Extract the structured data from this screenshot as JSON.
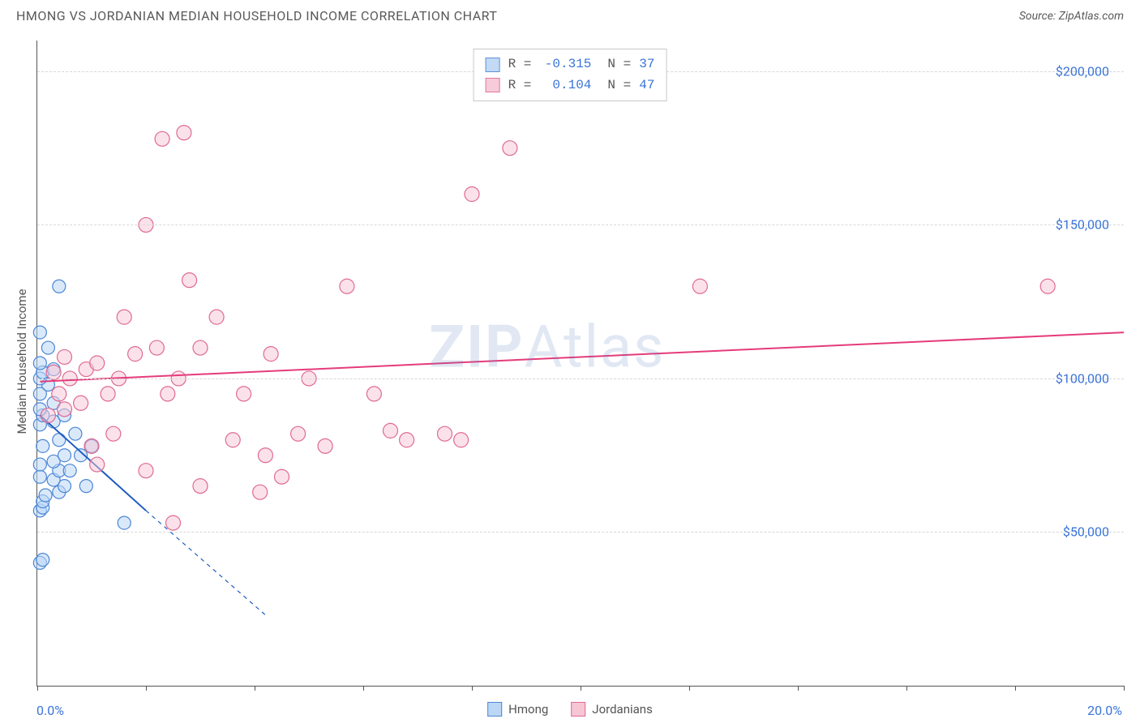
{
  "title": "HMONG VS JORDANIAN MEDIAN HOUSEHOLD INCOME CORRELATION CHART",
  "source_label": "Source: ZipAtlas.com",
  "watermark": {
    "bold": "ZIP",
    "rest": "Atlas"
  },
  "y_axis": {
    "title": "Median Household Income",
    "min": 0,
    "max": 210000,
    "ticks": [
      50000,
      100000,
      150000,
      200000
    ],
    "tick_labels": [
      "$50,000",
      "$100,000",
      "$150,000",
      "$200,000"
    ],
    "label_color": "#3a74d8",
    "grid_color": "#d8d8d8",
    "title_color": "#555555"
  },
  "x_axis": {
    "min": 0,
    "max": 20,
    "tick_positions": [
      0,
      2,
      4,
      6,
      8,
      10,
      12,
      14,
      16,
      18,
      20
    ],
    "min_label": "0.0%",
    "max_label": "20.0%",
    "label_color": "#3a74d8"
  },
  "series": [
    {
      "name": "Hmong",
      "R": "-0.315",
      "N": "37",
      "marker_fill": "#bcd7f5",
      "marker_stroke": "#4b86d6",
      "marker_fill_opacity": 0.55,
      "marker_radius": 8,
      "line_color": "#1e5bbf",
      "line_width": 2,
      "reg_start": {
        "x": 0.05,
        "y": 88000
      },
      "reg_solid_end": {
        "x": 2.0,
        "y": 57000
      },
      "reg_dash_end": {
        "x": 4.2,
        "y": 23000
      },
      "points": [
        [
          0.05,
          40000
        ],
        [
          0.1,
          41000
        ],
        [
          0.05,
          57000
        ],
        [
          0.1,
          58000
        ],
        [
          0.1,
          60000
        ],
        [
          0.15,
          62000
        ],
        [
          0.4,
          63000
        ],
        [
          0.5,
          65000
        ],
        [
          0.3,
          67000
        ],
        [
          0.05,
          68000
        ],
        [
          0.4,
          70000
        ],
        [
          0.6,
          70000
        ],
        [
          0.05,
          72000
        ],
        [
          0.3,
          73000
        ],
        [
          0.5,
          75000
        ],
        [
          0.8,
          75000
        ],
        [
          0.1,
          78000
        ],
        [
          0.4,
          80000
        ],
        [
          0.7,
          82000
        ],
        [
          0.05,
          85000
        ],
        [
          0.3,
          86000
        ],
        [
          0.1,
          88000
        ],
        [
          0.5,
          88000
        ],
        [
          0.05,
          90000
        ],
        [
          0.3,
          92000
        ],
        [
          0.05,
          95000
        ],
        [
          0.2,
          98000
        ],
        [
          0.05,
          100000
        ],
        [
          0.1,
          102000
        ],
        [
          0.3,
          103000
        ],
        [
          0.05,
          105000
        ],
        [
          0.2,
          110000
        ],
        [
          0.05,
          115000
        ],
        [
          0.4,
          130000
        ],
        [
          1.6,
          53000
        ],
        [
          1.0,
          78000
        ],
        [
          0.9,
          65000
        ]
      ]
    },
    {
      "name": "Jordanians",
      "R": "0.104",
      "N": "47",
      "marker_fill": "#f7c6d5",
      "marker_stroke": "#e06a91",
      "marker_fill_opacity": 0.5,
      "marker_radius": 9,
      "line_color": "#e53b7a",
      "line_width": 2,
      "reg_start": {
        "x": 0.05,
        "y": 99000
      },
      "reg_solid_end": {
        "x": 20.0,
        "y": 115000
      },
      "points": [
        [
          0.2,
          88000
        ],
        [
          0.5,
          90000
        ],
        [
          0.8,
          92000
        ],
        [
          0.4,
          95000
        ],
        [
          0.6,
          100000
        ],
        [
          0.3,
          102000
        ],
        [
          0.9,
          103000
        ],
        [
          1.1,
          105000
        ],
        [
          0.5,
          107000
        ],
        [
          1.3,
          95000
        ],
        [
          1.5,
          100000
        ],
        [
          1.8,
          108000
        ],
        [
          1.0,
          78000
        ],
        [
          1.4,
          82000
        ],
        [
          1.6,
          120000
        ],
        [
          2.0,
          70000
        ],
        [
          2.2,
          110000
        ],
        [
          2.4,
          95000
        ],
        [
          2.6,
          100000
        ],
        [
          2.5,
          53000
        ],
        [
          2.0,
          150000
        ],
        [
          2.7,
          180000
        ],
        [
          2.8,
          132000
        ],
        [
          3.0,
          110000
        ],
        [
          3.3,
          120000
        ],
        [
          3.0,
          65000
        ],
        [
          3.6,
          80000
        ],
        [
          3.8,
          95000
        ],
        [
          4.1,
          63000
        ],
        [
          4.2,
          75000
        ],
        [
          4.5,
          68000
        ],
        [
          4.8,
          82000
        ],
        [
          5.0,
          100000
        ],
        [
          5.3,
          78000
        ],
        [
          5.7,
          130000
        ],
        [
          4.3,
          108000
        ],
        [
          6.5,
          83000
        ],
        [
          6.8,
          80000
        ],
        [
          6.2,
          95000
        ],
        [
          7.5,
          82000
        ],
        [
          7.8,
          80000
        ],
        [
          8.0,
          160000
        ],
        [
          8.7,
          175000
        ],
        [
          12.2,
          130000
        ],
        [
          18.6,
          130000
        ],
        [
          2.3,
          178000
        ],
        [
          1.1,
          72000
        ]
      ]
    }
  ],
  "r_legend": {
    "r_label": "R =",
    "n_label": "N ="
  },
  "bottom_legend": {
    "items": [
      "Hmong",
      "Jordanians"
    ]
  }
}
